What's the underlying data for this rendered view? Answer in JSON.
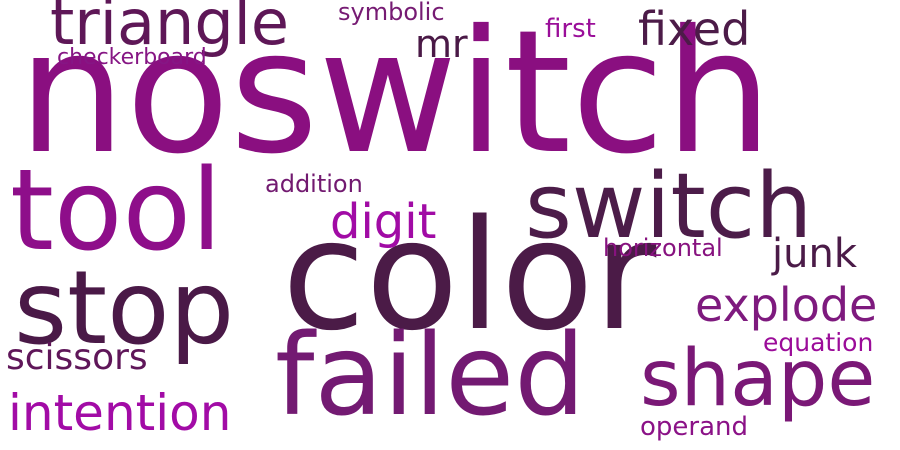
{
  "words": [
    {
      "id": "noswitch",
      "text": "noswitch",
      "color": "#8a0f80"
    },
    {
      "id": "color",
      "text": "color",
      "color": "#4b1b47"
    },
    {
      "id": "tool",
      "text": "tool",
      "color": "#8e0e8a"
    },
    {
      "id": "failed",
      "text": "failed",
      "color": "#731a72"
    },
    {
      "id": "stop",
      "text": "stop",
      "color": "#4a1947"
    },
    {
      "id": "switch",
      "text": "switch",
      "color": "#4c1c49"
    },
    {
      "id": "shape",
      "text": "shape",
      "color": "#7a1876"
    },
    {
      "id": "triangle",
      "text": "triangle",
      "color": "#5e1757"
    },
    {
      "id": "explode",
      "text": "explode",
      "color": "#7e1a7e"
    },
    {
      "id": "intention",
      "text": "intention",
      "color": "#a20ba6"
    },
    {
      "id": "digit",
      "text": "digit",
      "color": "#a10ba5"
    },
    {
      "id": "fixed",
      "text": "fixed",
      "color": "#4c1b48"
    },
    {
      "id": "junk",
      "text": "junk",
      "color": "#4b1b48"
    },
    {
      "id": "mr",
      "text": "mr",
      "color": "#4a1946"
    },
    {
      "id": "scissors",
      "text": "scissors",
      "color": "#5f1659"
    },
    {
      "id": "addition",
      "text": "addition",
      "color": "#721a70"
    },
    {
      "id": "horizontal",
      "text": "horizontal",
      "color": "#87127f"
    },
    {
      "id": "equation",
      "text": "equation",
      "color": "#9b0c99"
    },
    {
      "id": "operand",
      "text": "operand",
      "color": "#8b1287"
    },
    {
      "id": "symbolic",
      "text": "symbolic",
      "color": "#761b73"
    },
    {
      "id": "first",
      "text": "first",
      "color": "#9a0e99"
    },
    {
      "id": "checkerboard",
      "text": "checkerboard",
      "color": "#861684"
    }
  ]
}
